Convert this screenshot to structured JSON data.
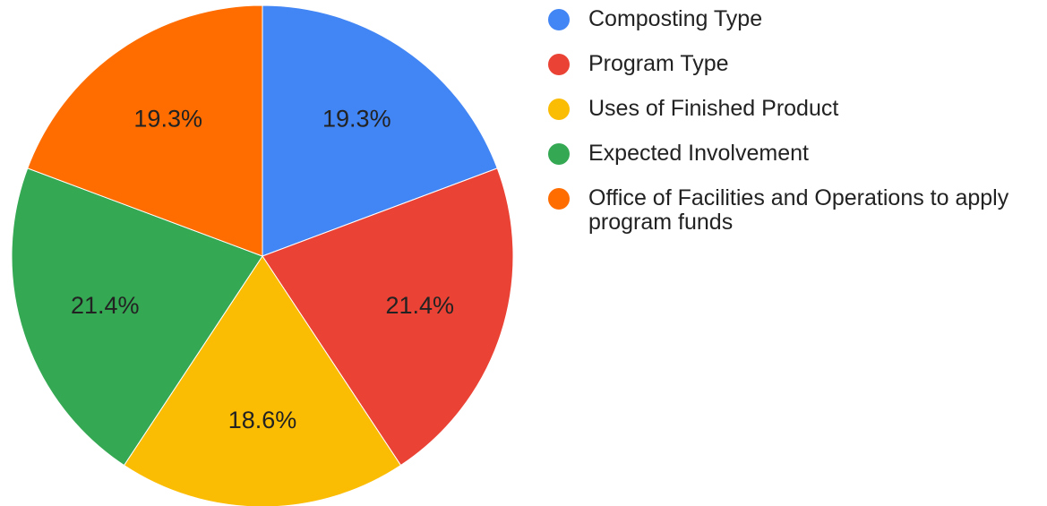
{
  "chart_data": {
    "type": "pie",
    "categories": [
      "Composting Type",
      "Program Type",
      "Uses of Finished Product",
      "Expected Involvement",
      "Office of Facilities and Operations to apply program funds"
    ],
    "values": [
      19.3,
      21.4,
      18.6,
      21.4,
      19.3
    ],
    "value_labels": [
      "19.3%",
      "21.4%",
      "18.6%",
      "21.4%",
      "19.3%"
    ],
    "colors": [
      "#4285f4",
      "#ea4335",
      "#fbbc04",
      "#34a853",
      "#ff6d01"
    ],
    "legend": "right"
  }
}
